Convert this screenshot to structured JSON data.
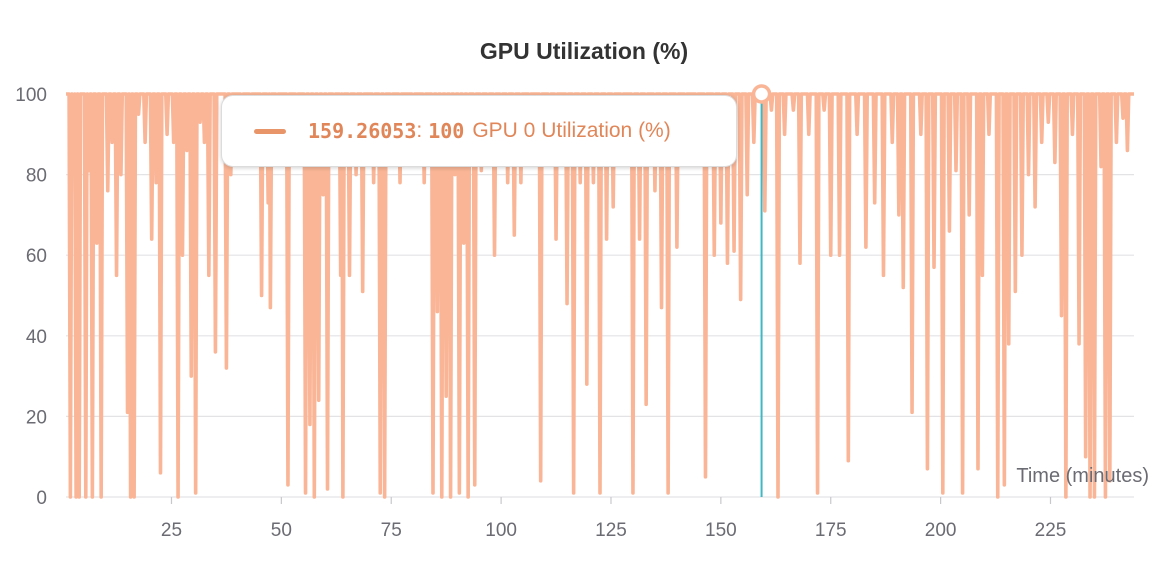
{
  "chart_data": {
    "type": "line",
    "title": "GPU Utilization (%)",
    "xlabel": "Time (minutes)",
    "ylabel": "",
    "xlim": [
      1,
      244
    ],
    "ylim": [
      0,
      100
    ],
    "x_ticks": [
      25,
      50,
      75,
      100,
      125,
      150,
      175,
      200,
      225
    ],
    "y_ticks": [
      0,
      20,
      40,
      60,
      80,
      100
    ],
    "grid": true,
    "series": [
      {
        "name": "GPU 0 Utilization (%)",
        "color": "#f9b596",
        "dips": [
          [
            2,
            0
          ],
          [
            2.7,
            82
          ],
          [
            3.3,
            0
          ],
          [
            4,
            0
          ],
          [
            5.5,
            0
          ],
          [
            6.2,
            81
          ],
          [
            7,
            0
          ],
          [
            8,
            63
          ],
          [
            9,
            0
          ],
          [
            10.5,
            76
          ],
          [
            11.5,
            88
          ],
          [
            12.5,
            55
          ],
          [
            13.5,
            80
          ],
          [
            15,
            21
          ],
          [
            15.7,
            0
          ],
          [
            16.5,
            0
          ],
          [
            17.5,
            95
          ],
          [
            19,
            88
          ],
          [
            20.5,
            64
          ],
          [
            21.5,
            78
          ],
          [
            22.5,
            6
          ],
          [
            24,
            90
          ],
          [
            25.5,
            88
          ],
          [
            26.5,
            0
          ],
          [
            27.5,
            60
          ],
          [
            28.5,
            86
          ],
          [
            29.5,
            30
          ],
          [
            30.5,
            1
          ],
          [
            31.5,
            93
          ],
          [
            32.5,
            88
          ],
          [
            33.5,
            55
          ],
          [
            35,
            36
          ],
          [
            37.5,
            32
          ],
          [
            38.5,
            80
          ],
          [
            41,
            88
          ],
          [
            43,
            90
          ],
          [
            45.5,
            50
          ],
          [
            47,
            73
          ],
          [
            47.5,
            47
          ],
          [
            49,
            90
          ],
          [
            51.5,
            3
          ],
          [
            53.5,
            90
          ],
          [
            55.5,
            1
          ],
          [
            56.5,
            18
          ],
          [
            57.5,
            0
          ],
          [
            58.5,
            24
          ],
          [
            59.5,
            75
          ],
          [
            60.5,
            2
          ],
          [
            62,
            90
          ],
          [
            63.5,
            55
          ],
          [
            64,
            0
          ],
          [
            65.5,
            55
          ],
          [
            67,
            80
          ],
          [
            68.5,
            51
          ],
          [
            71,
            78
          ],
          [
            72.5,
            1
          ],
          [
            73.5,
            0
          ],
          [
            75,
            90
          ],
          [
            77,
            78
          ],
          [
            80,
            88
          ],
          [
            82.5,
            78
          ],
          [
            84.5,
            1
          ],
          [
            85.5,
            46
          ],
          [
            86.5,
            0
          ],
          [
            87.5,
            25
          ],
          [
            88.5,
            0
          ],
          [
            89.5,
            80
          ],
          [
            90.5,
            1
          ],
          [
            91.5,
            63
          ],
          [
            92.5,
            0
          ],
          [
            94,
            3
          ],
          [
            95.5,
            81
          ],
          [
            97,
            88
          ],
          [
            98.5,
            60
          ],
          [
            100,
            88
          ],
          [
            101.5,
            78
          ],
          [
            103,
            65
          ],
          [
            104.5,
            78
          ],
          [
            106.5,
            90
          ],
          [
            109,
            4
          ],
          [
            111,
            88
          ],
          [
            112.5,
            64
          ],
          [
            115,
            48
          ],
          [
            116.5,
            1
          ],
          [
            118,
            78
          ],
          [
            119.5,
            28
          ],
          [
            121,
            78
          ],
          [
            122.5,
            1
          ],
          [
            124,
            64
          ],
          [
            125.5,
            72
          ],
          [
            127.5,
            90
          ],
          [
            130,
            1
          ],
          [
            131.5,
            64
          ],
          [
            133,
            23
          ],
          [
            135,
            76
          ],
          [
            136.5,
            47
          ],
          [
            138,
            1
          ],
          [
            140,
            62
          ],
          [
            142,
            90
          ],
          [
            144.5,
            90
          ],
          [
            146.5,
            5
          ],
          [
            148.5,
            60
          ],
          [
            150,
            68
          ],
          [
            151.5,
            58
          ],
          [
            153,
            61
          ],
          [
            154.5,
            49
          ],
          [
            156,
            75
          ],
          [
            157.5,
            88
          ],
          [
            159.3,
            100
          ],
          [
            160,
            71
          ],
          [
            161.5,
            96
          ],
          [
            163,
            0
          ],
          [
            164.5,
            90
          ],
          [
            166.5,
            96
          ],
          [
            168,
            58
          ],
          [
            170,
            90
          ],
          [
            172,
            1
          ],
          [
            173.5,
            96
          ],
          [
            175,
            60
          ],
          [
            177,
            60
          ],
          [
            179,
            9
          ],
          [
            181,
            90
          ],
          [
            183,
            62
          ],
          [
            185,
            73
          ],
          [
            187,
            55
          ],
          [
            189,
            88
          ],
          [
            190.5,
            70
          ],
          [
            191.5,
            52
          ],
          [
            193.5,
            21
          ],
          [
            195.5,
            90
          ],
          [
            197,
            7
          ],
          [
            198.5,
            57
          ],
          [
            200.5,
            1
          ],
          [
            202,
            66
          ],
          [
            203.5,
            81
          ],
          [
            205,
            1
          ],
          [
            206.5,
            70
          ],
          [
            208.5,
            7
          ],
          [
            209.5,
            55
          ],
          [
            211,
            90
          ],
          [
            213,
            0
          ],
          [
            214.5,
            3
          ],
          [
            215.5,
            38
          ],
          [
            217,
            51
          ],
          [
            218.5,
            60
          ],
          [
            220,
            80
          ],
          [
            221.5,
            72
          ],
          [
            223,
            88
          ],
          [
            224.5,
            93
          ],
          [
            226,
            83
          ],
          [
            227.5,
            45
          ],
          [
            228.5,
            0
          ],
          [
            230,
            90
          ],
          [
            231.5,
            38
          ],
          [
            233,
            10
          ],
          [
            234,
            0
          ],
          [
            235,
            0
          ],
          [
            236.5,
            82
          ],
          [
            237.5,
            0
          ],
          [
            238.5,
            4
          ],
          [
            240,
            88
          ],
          [
            241.5,
            94
          ],
          [
            242.5,
            86
          ]
        ]
      }
    ],
    "hover": {
      "x": 159.26053,
      "y": 100,
      "x_label": "159.26053",
      "y_label": "100",
      "series_name": "GPU 0 Utilization (%)",
      "crosshair_color": "#3fb7c4",
      "accent_color": "#e08658"
    }
  }
}
